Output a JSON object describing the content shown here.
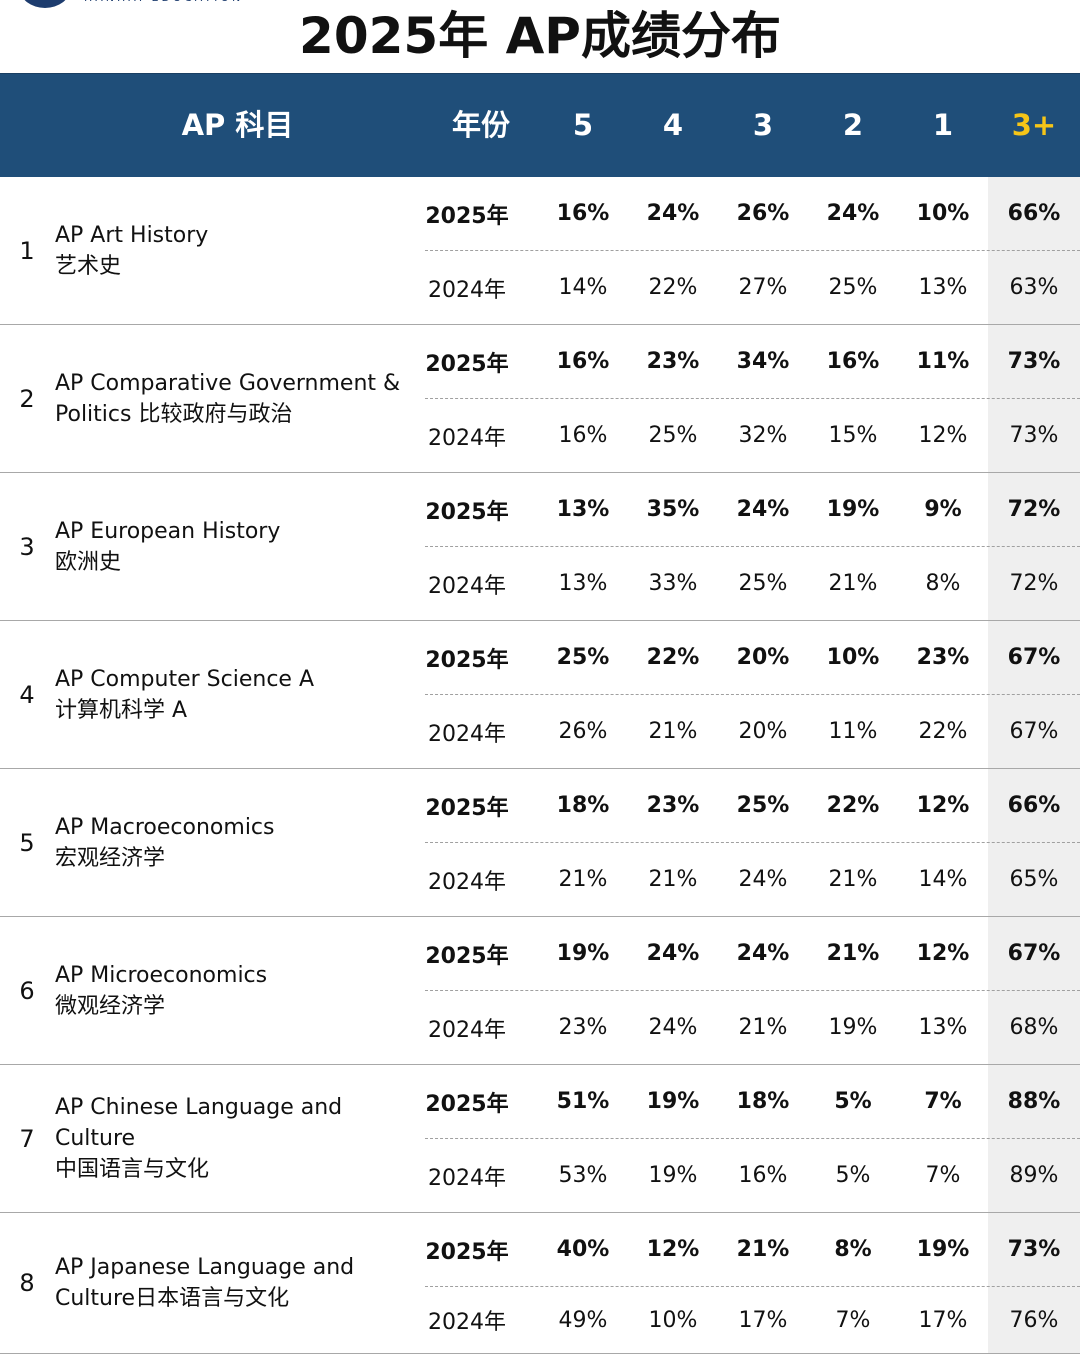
{
  "title": "2025年 AP成绩分布",
  "header": {
    "subject": "AP 科目",
    "year": "年份",
    "s5": "5",
    "s4": "4",
    "s3": "3",
    "s2": "2",
    "s1": "1",
    "plus": "3+"
  },
  "accent_colors": {
    "header_bg": "#1f4e79",
    "plus_header": "#f5c518",
    "plus_column_bg": "#efefef"
  },
  "rows": [
    {
      "index": "1",
      "subject_lines": [
        "AP Art History",
        "艺术史"
      ],
      "y2025": {
        "year": "2025年",
        "s5": "16%",
        "s4": "24%",
        "s3": "26%",
        "s2": "24%",
        "s1": "10%",
        "plus": "66%"
      },
      "y2024": {
        "year": "2024年",
        "s5": "14%",
        "s4": "22%",
        "s3": "27%",
        "s2": "25%",
        "s1": "13%",
        "plus": "63%"
      }
    },
    {
      "index": "2",
      "subject_lines": [
        "AP Comparative Government &",
        "Politics 比较政府与政治"
      ],
      "y2025": {
        "year": "2025年",
        "s5": "16%",
        "s4": "23%",
        "s3": "34%",
        "s2": "16%",
        "s1": "11%",
        "plus": "73%"
      },
      "y2024": {
        "year": "2024年",
        "s5": "16%",
        "s4": "25%",
        "s3": "32%",
        "s2": "15%",
        "s1": "12%",
        "plus": "73%"
      }
    },
    {
      "index": "3",
      "subject_lines": [
        "AP European History",
        "欧洲史"
      ],
      "y2025": {
        "year": "2025年",
        "s5": "13%",
        "s4": "35%",
        "s3": "24%",
        "s2": "19%",
        "s1": "9%",
        "plus": "72%"
      },
      "y2024": {
        "year": "2024年",
        "s5": "13%",
        "s4": "33%",
        "s3": "25%",
        "s2": "21%",
        "s1": "8%",
        "plus": "72%"
      }
    },
    {
      "index": "4",
      "subject_lines": [
        "AP Computer Science A",
        "计算机科学 A"
      ],
      "y2025": {
        "year": "2025年",
        "s5": "25%",
        "s4": "22%",
        "s3": "20%",
        "s2": "10%",
        "s1": "23%",
        "plus": "67%"
      },
      "y2024": {
        "year": "2024年",
        "s5": "26%",
        "s4": "21%",
        "s3": "20%",
        "s2": "11%",
        "s1": "22%",
        "plus": "67%"
      }
    },
    {
      "index": "5",
      "subject_lines": [
        "AP Macroeconomics",
        "宏观经济学"
      ],
      "y2025": {
        "year": "2025年",
        "s5": "18%",
        "s4": "23%",
        "s3": "25%",
        "s2": "22%",
        "s1": "12%",
        "plus": "66%"
      },
      "y2024": {
        "year": "2024年",
        "s5": "21%",
        "s4": "21%",
        "s3": "24%",
        "s2": "21%",
        "s1": "14%",
        "plus": "65%"
      }
    },
    {
      "index": "6",
      "subject_lines": [
        "AP Microeconomics",
        "微观经济学"
      ],
      "y2025": {
        "year": "2025年",
        "s5": "19%",
        "s4": "24%",
        "s3": "24%",
        "s2": "21%",
        "s1": "12%",
        "plus": "67%"
      },
      "y2024": {
        "year": "2024年",
        "s5": "23%",
        "s4": "24%",
        "s3": "21%",
        "s2": "19%",
        "s1": "13%",
        "plus": "68%"
      }
    },
    {
      "index": "7",
      "subject_lines": [
        "AP Chinese Language and Culture",
        "中国语言与文化"
      ],
      "y2025": {
        "year": "2025年",
        "s5": "51%",
        "s4": "19%",
        "s3": "18%",
        "s2": "5%",
        "s1": "7%",
        "plus": "88%"
      },
      "y2024": {
        "year": "2024年",
        "s5": "53%",
        "s4": "19%",
        "s3": "16%",
        "s2": "5%",
        "s1": "7%",
        "plus": "89%"
      }
    },
    {
      "index": "8",
      "subject_lines": [
        "AP Japanese Language and",
        "Culture日本语言与文化"
      ],
      "y2025": {
        "year": "2025年",
        "s5": "40%",
        "s4": "12%",
        "s3": "21%",
        "s2": "8%",
        "s1": "19%",
        "plus": "73%"
      },
      "y2024": {
        "year": "2024年",
        "s5": "49%",
        "s4": "10%",
        "s3": "17%",
        "s2": "7%",
        "s1": "17%",
        "plus": "76%"
      }
    }
  ]
}
